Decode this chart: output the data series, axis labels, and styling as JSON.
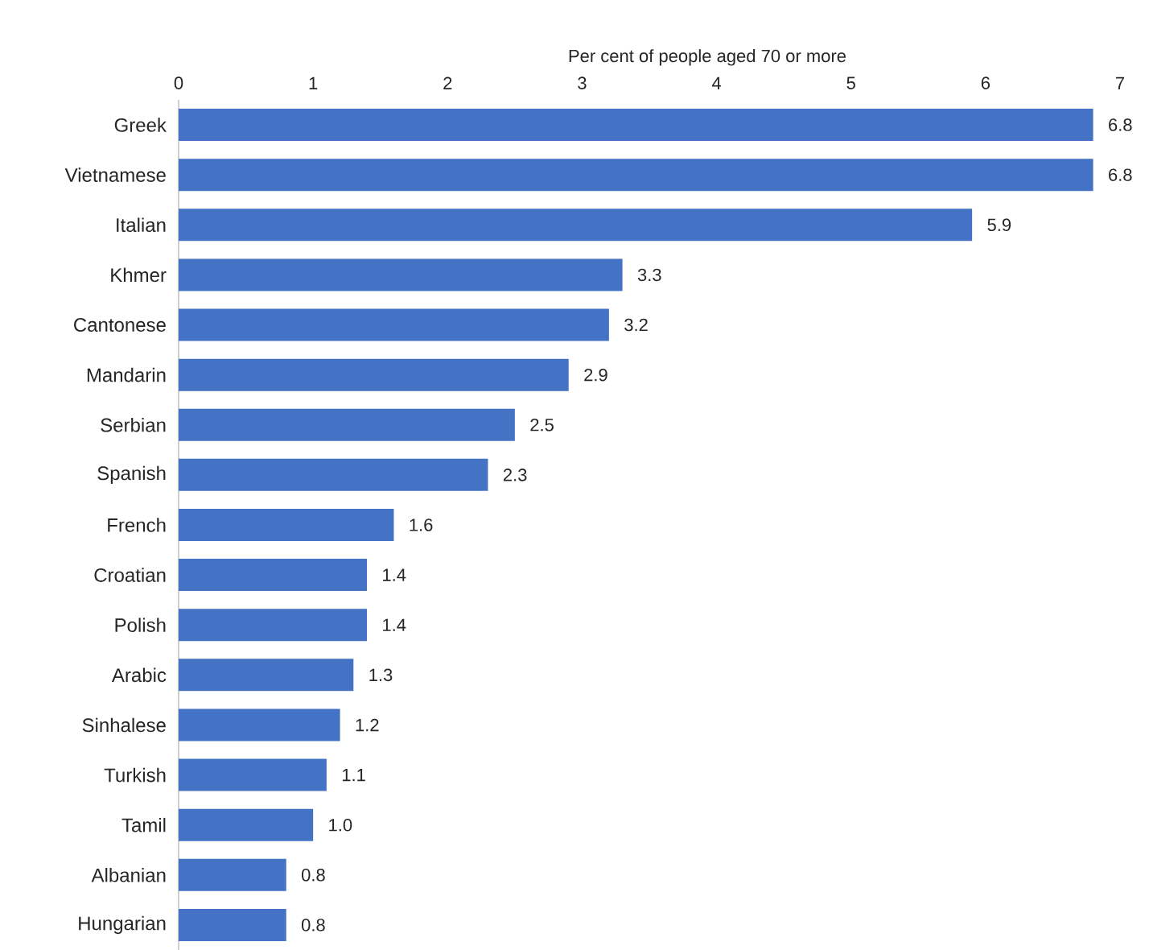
{
  "chart_data": {
    "type": "bar",
    "orientation": "horizontal",
    "xlabel": "Per cent of people aged 70 or more",
    "categories": [
      "Greek",
      "Vietnamese",
      "Italian",
      "Khmer",
      "Cantonese",
      "Mandarin",
      "Serbian",
      "Spanish",
      "French",
      "Croatian",
      "Polish",
      "Arabic",
      "Sinhalese",
      "Turkish",
      "Tamil",
      "Albanian",
      "Hungarian"
    ],
    "values": [
      6.8,
      6.8,
      5.9,
      3.3,
      3.2,
      2.9,
      2.5,
      2.3,
      1.6,
      1.4,
      1.4,
      1.3,
      1.2,
      1.1,
      1.0,
      0.8,
      0.8
    ],
    "value_labels": [
      "6.8",
      "6.8",
      "5.9",
      "3.3",
      "3.2",
      "2.9",
      "2.5",
      "2.3",
      "1.6",
      "1.4",
      "1.4",
      "1.3",
      "1.2",
      "1.1",
      "1.0",
      "0.8",
      "0.8"
    ],
    "color": "#4472c4",
    "xlim": [
      0,
      7
    ],
    "xticks": [
      0,
      1,
      2,
      3,
      4,
      5,
      6,
      7
    ]
  }
}
